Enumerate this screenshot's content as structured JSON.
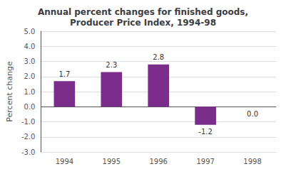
{
  "chart_data": {
    "type": "bar",
    "title": "Annual percent changes for finished goods,\nProducer Price Index, 1994-98",
    "ylabel": "Percent change",
    "categories": [
      "1994",
      "1995",
      "1996",
      "1997",
      "1998"
    ],
    "values": [
      1.7,
      2.3,
      2.8,
      -1.2,
      0.0
    ],
    "value_labels": [
      "1.7",
      "2.3",
      "2.8",
      "-1.2",
      "0.0"
    ],
    "data_labels": true,
    "color": "#7B2D8B",
    "ylim": [
      -3.0,
      5.0
    ],
    "yticks": [
      {
        "value": -3.0,
        "label": "-3.0"
      },
      {
        "value": -2.0,
        "label": "-2.0"
      },
      {
        "value": -1.0,
        "label": "-1.0"
      },
      {
        "value": 0.0,
        "label": "0.0"
      },
      {
        "value": 1.0,
        "label": "1.0"
      },
      {
        "value": 2.0,
        "label": "2.0"
      },
      {
        "value": 3.0,
        "label": "3.0"
      },
      {
        "value": 4.0,
        "label": "4.0"
      },
      {
        "value": 5.0,
        "label": "5.0"
      }
    ],
    "grid": true
  }
}
